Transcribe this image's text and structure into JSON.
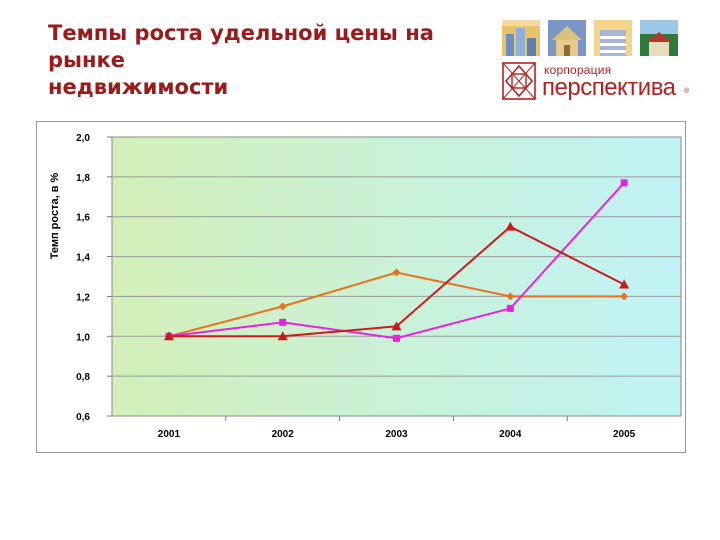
{
  "slide": {
    "title": "Темпы роста удельной цены на\nрынке\nнедвижимости"
  },
  "brand": {
    "logo_small": "корпорация",
    "logo_big": "перспектива",
    "logo_reg": "®",
    "colors": {
      "red": "#b32222"
    },
    "tiles": [
      "city-tile-icon",
      "house-tile-icon",
      "tower-tile-icon",
      "cottage-tile-icon"
    ]
  },
  "chart_data": {
    "type": "line",
    "title": "",
    "xlabel": "",
    "ylabel": "Темп роста, в %",
    "categories": [
      "2001",
      "2002",
      "2003",
      "2004",
      "2005"
    ],
    "ylim": [
      0.6,
      2.0
    ],
    "yticks": [
      "0,6",
      "0,8",
      "1,0",
      "1,2",
      "1,4",
      "1,6",
      "1,8",
      "2,0"
    ],
    "ytick_values": [
      0.6,
      0.8,
      1.0,
      1.2,
      1.4,
      1.6,
      1.8,
      2.0
    ],
    "grid": true,
    "legend": "none",
    "plot_background": "gradient-green-to-cyan",
    "series": [
      {
        "color": "#e8731a",
        "marker": "diamond",
        "values": [
          1.0,
          1.15,
          1.32,
          1.2,
          1.2
        ]
      },
      {
        "color": "#ea22e0",
        "marker": "square",
        "values": [
          1.0,
          1.07,
          0.99,
          1.14,
          1.77
        ]
      },
      {
        "color": "#cc1a1a",
        "marker": "triangle",
        "values": [
          1.0,
          1.0,
          1.05,
          1.55,
          1.26
        ]
      }
    ]
  }
}
